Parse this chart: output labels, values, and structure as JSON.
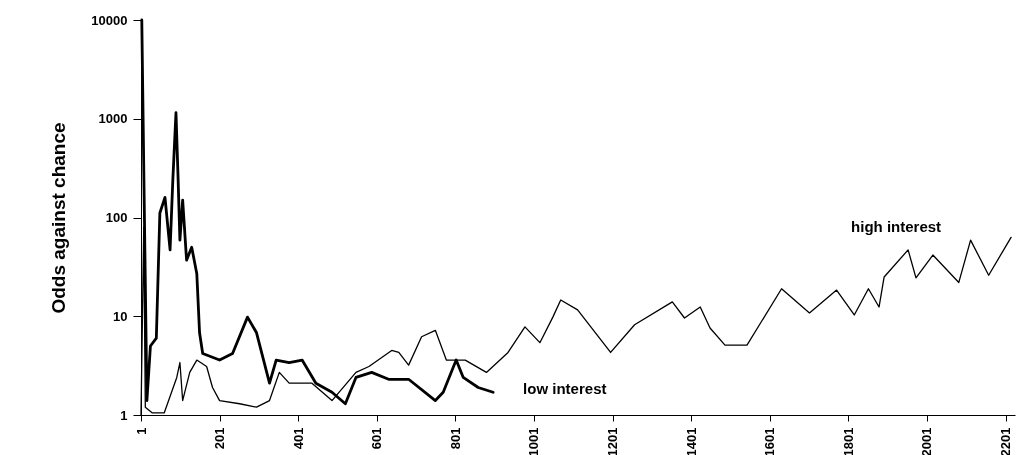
{
  "chart_data": {
    "type": "line",
    "ylabel": "Odds against chance",
    "log": true,
    "ylim": [
      1,
      10000
    ],
    "yticks": [
      1,
      10,
      100,
      1000,
      10000
    ],
    "xlim": [
      1,
      2225
    ],
    "xticks": [
      1,
      201,
      401,
      601,
      801,
      1001,
      1201,
      1401,
      1601,
      1801,
      2001,
      2201
    ],
    "grid": false,
    "series": [
      {
        "name": "high interest",
        "color": "#000000",
        "x": [
          1,
          8,
          12,
          30,
          60,
          92,
          100,
          107,
          125,
          143,
          168,
          183,
          201,
          252,
          295,
          328,
          353,
          378,
          436,
          487,
          548,
          581,
          639,
          657,
          682,
          715,
          750,
          778,
          826,
          880,
          935,
          978,
          1016,
          1049,
          1069,
          1112,
          1196,
          1257,
          1353,
          1384,
          1424,
          1449,
          1487,
          1543,
          1631,
          1702,
          1771,
          1816,
          1852,
          1879,
          1892,
          1953,
          1973,
          2016,
          2082,
          2112,
          2158,
          2215
        ],
        "values": [
          1,
          80,
          1.2,
          1.05,
          1.05,
          2.4,
          3.4,
          1.4,
          2.7,
          3.6,
          3.1,
          1.9,
          1.4,
          1.3,
          1.2,
          1.4,
          2.7,
          2.1,
          2.1,
          1.4,
          2.7,
          3.1,
          4.5,
          4.3,
          3.2,
          6.2,
          7.2,
          3.6,
          3.6,
          2.7,
          4.3,
          7.8,
          5.4,
          9.8,
          14.6,
          11.6,
          4.3,
          8.2,
          14,
          9.6,
          12.4,
          7.6,
          5.1,
          5.1,
          19,
          10.8,
          18.4,
          10.3,
          19,
          12.4,
          25,
          47,
          24.5,
          41.7,
          22,
          59,
          26,
          63
        ]
      },
      {
        "name": "low interest",
        "color": "#000000",
        "x": [
          3,
          16,
          25,
          40,
          49,
          62,
          75,
          82,
          90,
          95,
          100,
          107,
          117,
          130,
          143,
          150,
          158,
          201,
          234,
          272,
          295,
          328,
          345,
          378,
          411,
          446,
          487,
          521,
          548,
          588,
          631,
          682,
          750,
          770,
          803,
          821,
          859,
          897
        ],
        "values": [
          10000,
          1.4,
          5,
          6,
          111,
          160,
          47,
          240,
          1150,
          280,
          59,
          150,
          37,
          50,
          27,
          6.8,
          4.2,
          3.6,
          4.2,
          9.8,
          6.8,
          2.1,
          3.6,
          3.4,
          3.6,
          2.1,
          1.7,
          1.3,
          2.4,
          2.7,
          2.3,
          2.3,
          1.4,
          1.7,
          3.6,
          2.4,
          1.9,
          1.7
        ]
      }
    ]
  }
}
